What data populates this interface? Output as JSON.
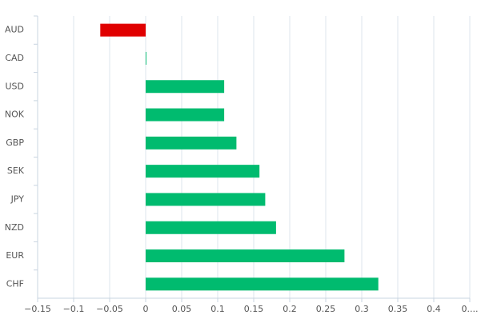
{
  "chart_data": {
    "type": "hbar",
    "categories": [
      "AUD",
      "CAD",
      "USD",
      "NOK",
      "GBP",
      "SEK",
      "JPY",
      "NZD",
      "EUR",
      "CHF"
    ],
    "values": [
      -0.063,
      0.001,
      0.109,
      0.109,
      0.126,
      0.158,
      0.166,
      0.181,
      0.276,
      0.323
    ],
    "positive_color": "#00bb6f",
    "negative_color": "#e00000",
    "xlim": [
      -0.15,
      0.45
    ],
    "xticks": [
      {
        "value": -0.15,
        "label": "−0.15"
      },
      {
        "value": -0.1,
        "label": "−0.1"
      },
      {
        "value": -0.05,
        "label": "−0.05"
      },
      0,
      0.05,
      0.1,
      0.15,
      0.2,
      0.25,
      0.3,
      0.35,
      0.4,
      {
        "value": 0.45,
        "label": "0...."
      }
    ],
    "grid": true
  }
}
